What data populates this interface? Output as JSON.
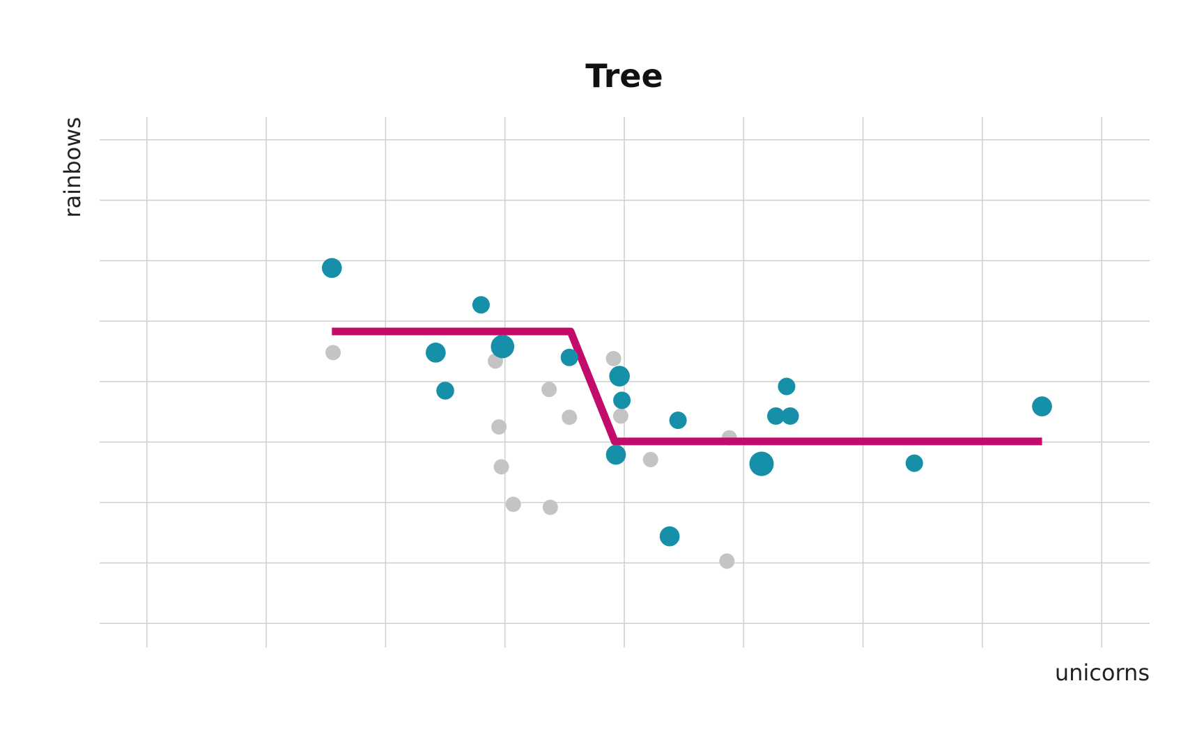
{
  "chart_data": {
    "type": "scatter",
    "title": "Tree",
    "xlabel": "unicorns",
    "ylabel": "rainbows",
    "x_ticks": [
      -4,
      -3,
      -2,
      -1,
      0,
      1,
      2,
      3,
      4
    ],
    "y_ticks": [
      -4,
      -3,
      -2,
      -1,
      0,
      1,
      2,
      3,
      4
    ],
    "xlim": [
      -4.4,
      4.4
    ],
    "ylim": [
      -4.4,
      4.4
    ],
    "grid": true,
    "tick_labels_shown": false,
    "series": [
      {
        "role": "training points",
        "color": "#168fa8",
        "points": [
          {
            "x": -2.45,
            "y": 1.88,
            "w": 2.0
          },
          {
            "x": -1.58,
            "y": 0.48,
            "w": 2.0
          },
          {
            "x": -1.5,
            "y": -0.15,
            "w": 1.4
          },
          {
            "x": -1.2,
            "y": 1.27,
            "w": 1.3
          },
          {
            "x": -1.02,
            "y": 0.58,
            "w": 3.2
          },
          {
            "x": -0.46,
            "y": 0.4,
            "w": 1.3
          },
          {
            "x": -0.07,
            "y": -1.21,
            "w": 2.0
          },
          {
            "x": -0.04,
            "y": 0.09,
            "w": 2.2
          },
          {
            "x": -0.02,
            "y": -0.31,
            "w": 1.3
          },
          {
            "x": 0.45,
            "y": -0.64,
            "w": 1.3
          },
          {
            "x": 0.38,
            "y": -2.56,
            "w": 2.0
          },
          {
            "x": 1.15,
            "y": -1.36,
            "w": 3.6
          },
          {
            "x": 1.27,
            "y": -0.57,
            "w": 1.3
          },
          {
            "x": 1.36,
            "y": -0.08,
            "w": 1.3
          },
          {
            "x": 1.39,
            "y": -0.57,
            "w": 1.3
          },
          {
            "x": 2.43,
            "y": -1.35,
            "w": 1.3
          },
          {
            "x": 3.5,
            "y": -0.41,
            "w": 2.0
          }
        ]
      },
      {
        "role": "other points",
        "color": "#c4c4c4",
        "points": [
          {
            "x": -2.44,
            "y": 0.48
          },
          {
            "x": -1.08,
            "y": 0.34
          },
          {
            "x": -1.05,
            "y": -0.75
          },
          {
            "x": -1.03,
            "y": -1.41
          },
          {
            "x": -0.93,
            "y": -2.03
          },
          {
            "x": -0.63,
            "y": -0.13
          },
          {
            "x": -0.62,
            "y": -2.08
          },
          {
            "x": -0.46,
            "y": -0.59
          },
          {
            "x": -0.09,
            "y": 0.38
          },
          {
            "x": -0.03,
            "y": -0.57
          },
          {
            "x": 0.22,
            "y": -1.29
          },
          {
            "x": 0.88,
            "y": -0.93
          },
          {
            "x": 0.86,
            "y": -2.97
          }
        ]
      },
      {
        "role": "tree prediction",
        "type": "step-line",
        "color": "#c20c6b",
        "points": [
          {
            "x": -2.45,
            "y": 0.83
          },
          {
            "x": -0.45,
            "y": 0.83
          },
          {
            "x": -0.08,
            "y": -0.99
          },
          {
            "x": 3.5,
            "y": -0.99
          }
        ]
      }
    ]
  }
}
